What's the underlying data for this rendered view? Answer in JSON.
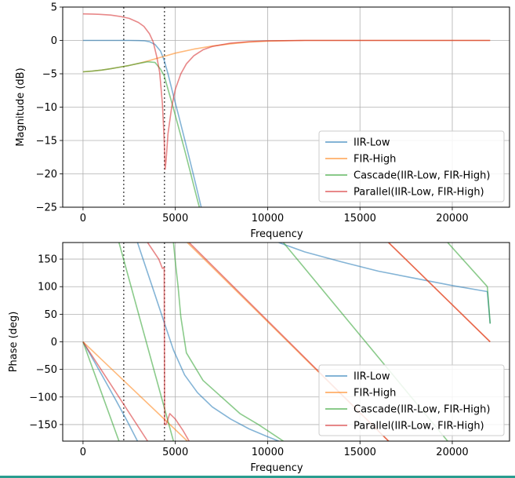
{
  "figure": {
    "background": "#ffffff",
    "bottom_strip_color": "#2a9d8f"
  },
  "chart_data": [
    {
      "type": "line",
      "xlabel": "Frequency",
      "ylabel": "Magnitude (dB)",
      "xlim": [
        -1100,
        23100
      ],
      "ylim": [
        -25,
        5
      ],
      "xticks": [
        0,
        5000,
        10000,
        15000,
        20000
      ],
      "yticks": [
        5,
        0,
        -5,
        -10,
        -15,
        -20,
        -25
      ],
      "grid": true,
      "legend_placement": "lower-right",
      "vlines": [
        2205,
        4410
      ],
      "vline_color": "#555555",
      "series": [
        {
          "name": "IIR-Low",
          "color": "#1f77b4",
          "x": [
            0,
            1000,
            2000,
            2500,
            3000,
            3300,
            3600,
            3900,
            4200,
            4400,
            4600,
            4900,
            5200,
            5500,
            5800,
            6100,
            6400
          ],
          "y": [
            0,
            0,
            0,
            0,
            -0.02,
            -0.05,
            -0.2,
            -0.6,
            -1.6,
            -3.0,
            -5.0,
            -8.3,
            -11.5,
            -14.8,
            -18.1,
            -21.5,
            -25
          ]
        },
        {
          "name": "FIR-High",
          "color": "#ff7f0e",
          "x": [
            0,
            500,
            1000,
            1500,
            2000,
            2500,
            3000,
            3500,
            4000,
            4500,
            5000,
            6000,
            7000,
            8000,
            9000,
            10000,
            12000,
            15000,
            18000,
            22050
          ],
          "y": [
            -4.7,
            -4.6,
            -4.45,
            -4.25,
            -4.0,
            -3.75,
            -3.45,
            -3.1,
            -2.7,
            -2.3,
            -1.9,
            -1.3,
            -0.85,
            -0.5,
            -0.25,
            -0.1,
            0,
            0,
            0,
            0
          ]
        },
        {
          "name": "Cascade(IIR-Low, FIR-High)",
          "color": "#2ca02c",
          "x": [
            0,
            500,
            1000,
            1500,
            2000,
            2500,
            3000,
            3500,
            3900,
            4200,
            4400,
            4600,
            4900,
            5200,
            5500,
            5800,
            6100,
            6300
          ],
          "y": [
            -4.7,
            -4.6,
            -4.45,
            -4.25,
            -4.0,
            -3.75,
            -3.45,
            -3.2,
            -3.3,
            -4.3,
            -5.3,
            -7.3,
            -10.2,
            -13.3,
            -16.4,
            -19.6,
            -22.9,
            -25
          ]
        },
        {
          "name": "Parallel(IIR-Low, FIR-High)",
          "color": "#d62728",
          "x": [
            0,
            500,
            1000,
            1500,
            2000,
            2500,
            3000,
            3300,
            3600,
            3800,
            4000,
            4150,
            4300,
            4400,
            4450,
            4500,
            4600,
            4800,
            5000,
            5300,
            5600,
            6000,
            6500,
            7000,
            8000,
            9000,
            10000,
            12000,
            15000,
            18000,
            22050
          ],
          "y": [
            3.98,
            3.95,
            3.9,
            3.8,
            3.6,
            3.3,
            2.7,
            2.1,
            1.0,
            -0.2,
            -2.5,
            -4.8,
            -9.5,
            -15,
            -19.3,
            -18.0,
            -14.0,
            -10.0,
            -7.3,
            -5.0,
            -3.5,
            -2.3,
            -1.4,
            -0.9,
            -0.4,
            -0.18,
            -0.06,
            0,
            0,
            0,
            0
          ]
        }
      ]
    },
    {
      "type": "line",
      "xlabel": "Frequency",
      "ylabel": "Phase (deg)",
      "xlim": [
        -1100,
        23100
      ],
      "ylim": [
        -180,
        180
      ],
      "xticks": [
        0,
        5000,
        10000,
        15000,
        20000
      ],
      "yticks": [
        150,
        100,
        50,
        0,
        -50,
        -100,
        -150
      ],
      "grid": true,
      "legend_placement": "lower-right",
      "vlines": [
        2205,
        4410
      ],
      "vline_color": "#555555",
      "series": [
        {
          "name": "IIR-Low",
          "color": "#1f77b4",
          "segments": [
            {
              "x": [
                0,
                600,
                1200,
                1800,
                2400,
                2950
              ],
              "y": [
                0,
                -35,
                -71,
                -107,
                -144,
                -180
              ]
            },
            {
              "x": [
                2950,
                3400,
                3900,
                4400,
                4900,
                5500,
                6200,
                7000,
                8000,
                9000,
                10000,
                10600
              ],
              "y": [
                180,
                135,
                85,
                35,
                -15,
                -60,
                -92,
                -118,
                -140,
                -158,
                -172,
                -180
              ]
            },
            {
              "x": [
                10600,
                12000,
                14000,
                16000,
                18000,
                20000,
                21900
              ],
              "y": [
                180,
                163,
                145,
                128,
                115,
                102,
                91
              ]
            },
            {
              "x": [
                21900,
                22050
              ],
              "y": [
                91,
                33
              ]
            }
          ]
        },
        {
          "name": "FIR-High",
          "color": "#ff7f0e",
          "segments": [
            {
              "x": [
                0,
                5650
              ],
              "y": [
                0,
                -180
              ]
            },
            {
              "x": [
                5650,
                16550
              ],
              "y": [
                180,
                -180
              ]
            },
            {
              "x": [
                16550,
                22050
              ],
              "y": [
                180,
                0
              ]
            }
          ]
        },
        {
          "name": "Cascade(IIR-Low, FIR-High)",
          "color": "#2ca02c",
          "segments": [
            {
              "x": [
                0,
                1950
              ],
              "y": [
                0,
                -180
              ]
            },
            {
              "x": [
                1950,
                4900
              ],
              "y": [
                180,
                -180
              ]
            },
            {
              "x": [
                4900,
                5000,
                5150,
                5300,
                5600,
                6500,
                7500,
                8500,
                9500,
                10850
              ],
              "y": [
                180,
                145,
                100,
                45,
                -20,
                -70,
                -100,
                -130,
                -150,
                -180
              ]
            },
            {
              "x": [
                10850,
                19750
              ],
              "y": [
                180,
                -180
              ]
            },
            {
              "x": [
                19750,
                21900
              ],
              "y": [
                180,
                100
              ]
            },
            {
              "x": [
                21900,
                22050
              ],
              "y": [
                100,
                33
              ]
            }
          ]
        },
        {
          "name": "Parallel(IIR-Low, FIR-High)",
          "color": "#d62728",
          "segments": [
            {
              "x": [
                0,
                3500
              ],
              "y": [
                0,
                -180
              ]
            },
            {
              "x": [
                3500,
                3800,
                4100,
                4300,
                4400
              ],
              "y": [
                180,
                165,
                150,
                133,
                135
              ]
            },
            {
              "x": [
                4400,
                4420,
                4500
              ],
              "y": [
                135,
                -150,
                -150
              ]
            },
            {
              "x": [
                4500,
                4700,
                5000,
                5400,
                5750
              ],
              "y": [
                -150,
                -130,
                -140,
                -160,
                -180
              ]
            },
            {
              "x": [
                5750,
                16550
              ],
              "y": [
                180,
                -180
              ]
            },
            {
              "x": [
                16550,
                22050
              ],
              "y": [
                180,
                0
              ]
            }
          ]
        }
      ]
    }
  ]
}
